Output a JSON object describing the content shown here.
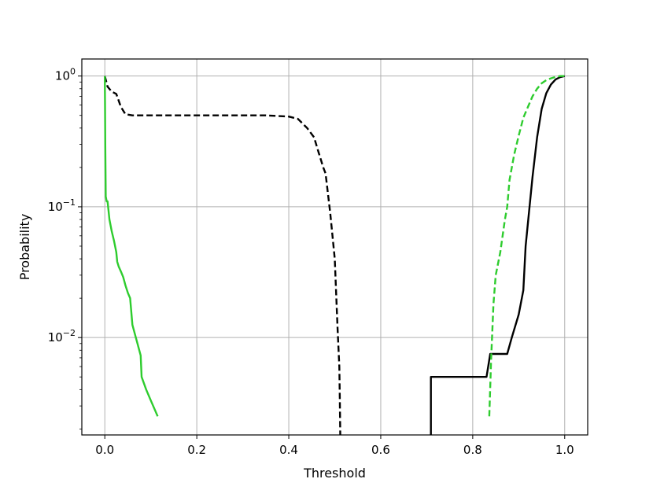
{
  "chart_data": {
    "type": "line",
    "title": "",
    "xlabel": "Threshold",
    "ylabel": "Probability",
    "xlim": [
      -0.05,
      1.05
    ],
    "ylim": [
      0.0018,
      1.35
    ],
    "yscale": "log",
    "grid": true,
    "x_ticks": [
      0.0,
      0.2,
      0.4,
      0.6,
      0.8,
      1.0
    ],
    "x_tick_labels": [
      "0.0",
      "0.2",
      "0.4",
      "0.6",
      "0.8",
      "1.0"
    ],
    "y_ticks": [
      {
        "value": 1,
        "base": "10",
        "exp": "0"
      },
      {
        "value": 0.1,
        "base": "10",
        "exp": "−1"
      },
      {
        "value": 0.01,
        "base": "10",
        "exp": "−2"
      }
    ],
    "series": [
      {
        "color": "#000000",
        "style": "dashed",
        "x": [
          0.0,
          0.006,
          0.015,
          0.025,
          0.035,
          0.045,
          0.06,
          0.1,
          0.2,
          0.3,
          0.35,
          0.4,
          0.42,
          0.44,
          0.455,
          0.465,
          0.475,
          0.48,
          0.49,
          0.5,
          0.506,
          0.51,
          0.511,
          0.512
        ],
        "y": [
          1.0,
          0.83,
          0.76,
          0.73,
          0.58,
          0.51,
          0.5,
          0.5,
          0.5,
          0.5,
          0.5,
          0.49,
          0.47,
          0.4,
          0.34,
          0.26,
          0.2,
          0.18,
          0.09,
          0.04,
          0.012,
          0.006,
          0.0035,
          0.0018
        ]
      },
      {
        "color": "#2ecc2e",
        "style": "solid",
        "x": [
          0.0,
          0.0005,
          0.001,
          0.002,
          0.004,
          0.006,
          0.01,
          0.015,
          0.02,
          0.025,
          0.027,
          0.03,
          0.035,
          0.04,
          0.045,
          0.05,
          0.055,
          0.06,
          0.07,
          0.078,
          0.08,
          0.09,
          0.1,
          0.115
        ],
        "y": [
          1.0,
          0.6,
          0.3,
          0.12,
          0.11,
          0.11,
          0.08,
          0.065,
          0.055,
          0.045,
          0.038,
          0.035,
          0.032,
          0.029,
          0.025,
          0.022,
          0.02,
          0.0125,
          0.0093,
          0.0073,
          0.005,
          0.004,
          0.0033,
          0.0025
        ]
      },
      {
        "color": "#000000",
        "style": "solid",
        "x": [
          0.709,
          0.709,
          0.83,
          0.838,
          0.875,
          0.885,
          0.9,
          0.91,
          0.915,
          0.92,
          0.93,
          0.94,
          0.95,
          0.96,
          0.97,
          0.98,
          0.99,
          1.0
        ],
        "y": [
          0.0018,
          0.005,
          0.005,
          0.0075,
          0.0075,
          0.01,
          0.015,
          0.023,
          0.05,
          0.075,
          0.17,
          0.34,
          0.56,
          0.74,
          0.86,
          0.94,
          0.98,
          1.0
        ]
      },
      {
        "color": "#2ecc2e",
        "style": "dashed",
        "x": [
          0.836,
          0.84,
          0.845,
          0.85,
          0.86,
          0.87,
          0.875,
          0.88,
          0.89,
          0.9,
          0.91,
          0.92,
          0.93,
          0.94,
          0.95,
          0.96,
          0.97,
          0.98,
          0.99,
          1.0
        ],
        "y": [
          0.0025,
          0.0067,
          0.018,
          0.03,
          0.045,
          0.08,
          0.1,
          0.16,
          0.25,
          0.35,
          0.48,
          0.58,
          0.7,
          0.8,
          0.88,
          0.93,
          0.96,
          0.985,
          1.0,
          1.0
        ]
      }
    ]
  }
}
